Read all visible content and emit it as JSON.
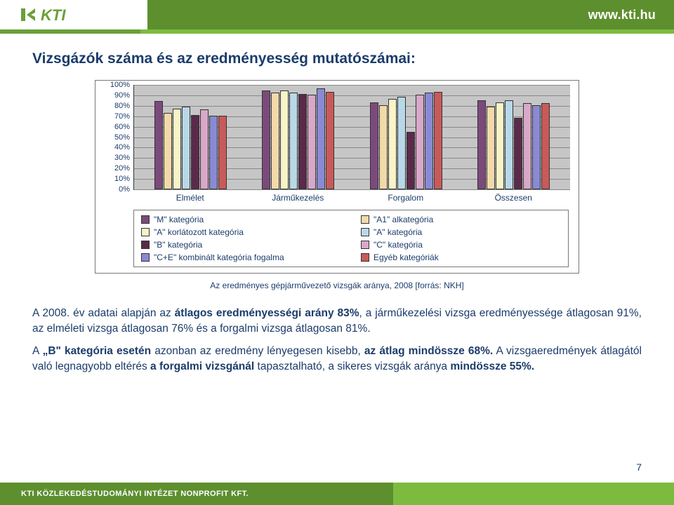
{
  "brand": {
    "logo_fill": "#6aa038",
    "logo_text": "KTI",
    "url": "www.kti.hu",
    "green_dark": "#5d8f2e",
    "green_light": "#7dbb3f",
    "strip_color": "#6aa038"
  },
  "title": "Vizsgázók száma és az eredményesség mutatószámai:",
  "chart": {
    "type": "bar",
    "background_color": "#c6c6c6",
    "grid_color": "#888888",
    "ylim": [
      0,
      100
    ],
    "ytick_step": 10,
    "axis_font_size": 11,
    "categories": [
      "Elmélet",
      "Járműkezelés",
      "Forgalom",
      "Összesen"
    ],
    "series": [
      {
        "label": "\"M\" kategória",
        "color": "#7b4a7b",
        "values": [
          84,
          94,
          83,
          85
        ]
      },
      {
        "label": "\"A1\" alkategória",
        "color": "#f2d9a8",
        "values": [
          73,
          92,
          80,
          79
        ]
      },
      {
        "label": "\"A\" korlátozott kategória",
        "color": "#f8f4c8",
        "values": [
          77,
          94,
          86,
          83
        ]
      },
      {
        "label": "\"A\" kategória",
        "color": "#b8d8e8",
        "values": [
          79,
          92,
          88,
          85
        ]
      },
      {
        "label": "\"B\" kategória",
        "color": "#5a2a4a",
        "values": [
          71,
          91,
          55,
          68
        ]
      },
      {
        "label": "\"C\" kategória",
        "color": "#d8a8c8",
        "values": [
          76,
          90,
          90,
          82
        ]
      },
      {
        "label": "\"C+E\" kombinált kategória fogalma",
        "color": "#8a8ad4",
        "values": [
          70,
          96,
          92,
          80
        ]
      },
      {
        "label": "Egyéb kategóriák",
        "color": "#c85a5a",
        "values": [
          70,
          93,
          93,
          82
        ]
      }
    ]
  },
  "caption": "Az eredményes gépjárművezető vizsgák aránya, 2008 [forrás: NKH]",
  "para1_prefix": "A 2008. év adatai alapján az ",
  "para1_b1": "átlagos eredményességi arány 83%",
  "para1_mid": ", a járműkezelési vizsga eredményessége átlagosan 91%, az elméleti vizsga átlagosan 76% és a forgalmi vizsga átlagosan 81%.",
  "para2_a": "A ",
  "para2_b1": "„B\" kategória esetén",
  "para2_b": " azonban az eredmény lényegesen kisebb, ",
  "para2_b2": "az átlag mindössze 68%.",
  "para2_c": " A vizsgaeredmények átlagától való legnagyobb eltérés ",
  "para2_b3": "a forgalmi vizsgánál",
  "para2_d": " tapasztalható, a sikeres vizsgák aránya ",
  "para2_b4": "mindössze 55%.",
  "footer_text": "KTI KÖZLEKEDÉSTUDOMÁNYI INTÉZET NONPROFIT KFT.",
  "page_number": "7"
}
